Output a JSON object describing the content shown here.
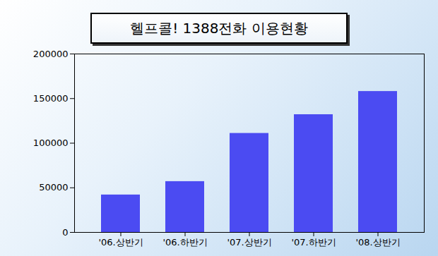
{
  "chart_data": {
    "type": "bar",
    "title": "헬프콜! 1388전화 이용현황",
    "categories": [
      "'06.상반기",
      "'06.하반기",
      "'07.상반기",
      "'07.하반기",
      "'08.상반기"
    ],
    "values": [
      42000,
      57000,
      111000,
      132000,
      158000
    ],
    "color": "#4b4bf2",
    "ylim": [
      0,
      200000
    ],
    "yticks": [
      0,
      50000,
      100000,
      150000,
      200000
    ],
    "grid": false
  }
}
